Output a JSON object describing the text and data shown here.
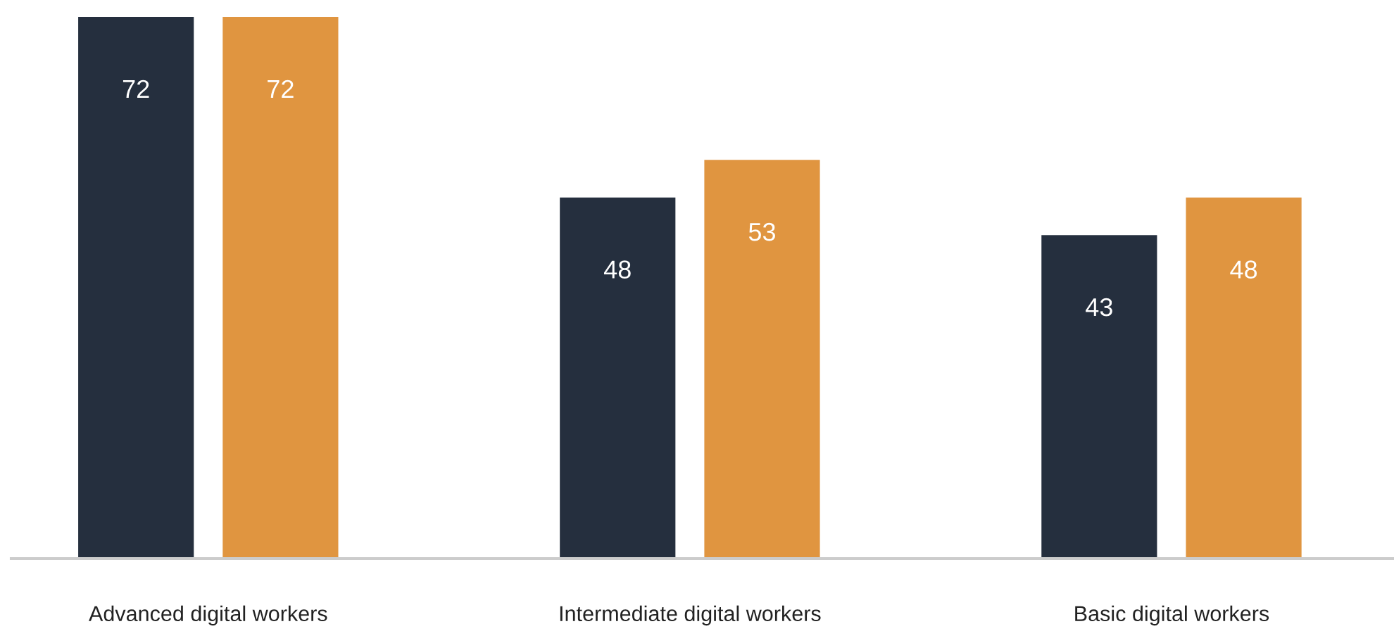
{
  "chart_data": {
    "type": "bar",
    "categories": [
      "Advanced digital workers",
      "Intermediate digital workers",
      "Basic digital workers"
    ],
    "series": [
      {
        "color": "#252f3e",
        "values": [
          72,
          48,
          43
        ]
      },
      {
        "color": "#e09540",
        "values": [
          72,
          53,
          48
        ]
      }
    ],
    "data_labels": true,
    "grid": false,
    "legend": false
  }
}
